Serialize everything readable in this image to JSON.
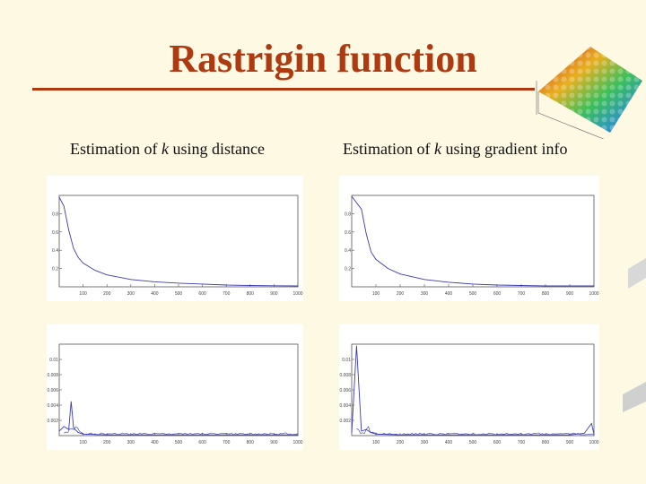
{
  "slide": {
    "title": "Rastrigin function"
  },
  "captions": {
    "left_prefix": "Estimation of ",
    "left_var": "k",
    "left_suffix": " using distance",
    "right_prefix": "Estimation of ",
    "right_var": "k",
    "right_suffix": " using gradient info"
  },
  "colors": {
    "title": "#b03a10",
    "background": "#fdf9e3",
    "line": "#3b3bb0"
  },
  "chart_data": [
    {
      "type": "line",
      "title": "",
      "ylim": [
        0,
        1
      ],
      "xlim": [
        0,
        1000
      ],
      "x_ticks": [
        "100",
        "200",
        "300",
        "400",
        "500",
        "600",
        "700",
        "800",
        "900",
        "1000"
      ],
      "y_ticks": [
        "0.2",
        "0.4",
        "0.6",
        "0.8"
      ],
      "shape": "decay",
      "x": [
        0,
        20,
        40,
        60,
        80,
        100,
        150,
        200,
        300,
        400,
        500,
        600,
        700,
        800,
        900,
        1000
      ],
      "values": [
        0.98,
        0.88,
        0.62,
        0.42,
        0.32,
        0.26,
        0.18,
        0.13,
        0.08,
        0.055,
        0.04,
        0.03,
        0.02,
        0.015,
        0.012,
        0.01
      ]
    },
    {
      "type": "line",
      "title": "",
      "ylim": [
        0,
        1
      ],
      "xlim": [
        0,
        1000
      ],
      "x_ticks": [
        "100",
        "200",
        "300",
        "400",
        "500",
        "600",
        "700",
        "800",
        "900",
        "1000"
      ],
      "y_ticks": [
        "0.2",
        "0.4",
        "0.6",
        "0.8"
      ],
      "shape": "decay",
      "x": [
        0,
        20,
        40,
        60,
        80,
        100,
        150,
        200,
        300,
        400,
        500,
        600,
        700,
        800,
        900,
        1000
      ],
      "values": [
        0.99,
        0.92,
        0.85,
        0.58,
        0.38,
        0.3,
        0.2,
        0.14,
        0.08,
        0.05,
        0.03,
        0.02,
        0.015,
        0.01,
        0.01,
        0.01
      ]
    },
    {
      "type": "line",
      "title": "",
      "ylim": [
        0,
        0.012
      ],
      "xlim": [
        0,
        1000
      ],
      "x_ticks": [
        "100",
        "200",
        "300",
        "400",
        "500",
        "600",
        "700",
        "800",
        "900",
        "1000"
      ],
      "y_ticks": [
        "0.002",
        "0.004",
        "0.006",
        "0.008",
        "0.01"
      ],
      "shape": "spike",
      "x": [
        0,
        20,
        40,
        50,
        60,
        80,
        100,
        200,
        300,
        400,
        500,
        600,
        700,
        800,
        900,
        1000
      ],
      "values": [
        0.0006,
        0.0012,
        0.0008,
        0.0045,
        0.001,
        0.0004,
        0.0002,
        0.0001,
        0.0001,
        0.0001,
        0.0001,
        0.0001,
        0.0001,
        0.0001,
        0.0001,
        0.0001
      ]
    },
    {
      "type": "line",
      "title": "",
      "ylim": [
        0,
        0.012
      ],
      "xlim": [
        0,
        1000
      ],
      "x_ticks": [
        "100",
        "200",
        "300",
        "400",
        "500",
        "600",
        "700",
        "800",
        "900",
        "1000"
      ],
      "y_ticks": [
        "0.002",
        "0.004",
        "0.006",
        "0.008",
        "0.01"
      ],
      "shape": "spike-end",
      "x": [
        0,
        20,
        40,
        60,
        80,
        100,
        200,
        300,
        400,
        500,
        600,
        700,
        800,
        900,
        960,
        990,
        1000
      ],
      "values": [
        0.0004,
        0.0118,
        0.0006,
        0.0008,
        0.0004,
        0.0002,
        0.0001,
        0.0001,
        0.0001,
        0.0001,
        0.0001,
        0.0001,
        0.0001,
        0.0001,
        0.0003,
        0.0016,
        0.0002
      ]
    }
  ]
}
